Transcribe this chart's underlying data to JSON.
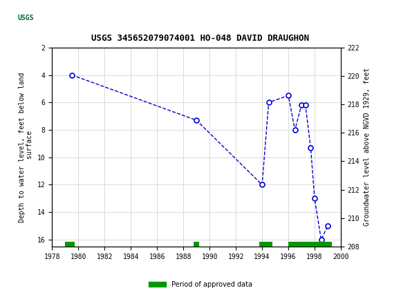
{
  "title": "USGS 345652079074001 HO-048 DAVID DRAUGHON",
  "ylabel_left": "Depth to water level, feet below land\n surface",
  "ylabel_right": "Groundwater level above NGVD 1929, feet",
  "header_color": "#006633",
  "xlim": [
    1978,
    2000
  ],
  "ylim_left": [
    2,
    16.5
  ],
  "ylim_right": [
    208,
    222
  ],
  "xticks": [
    1978,
    1980,
    1982,
    1984,
    1986,
    1988,
    1990,
    1992,
    1994,
    1996,
    1998,
    2000
  ],
  "yticks_left": [
    2,
    4,
    6,
    8,
    10,
    12,
    14,
    16
  ],
  "yticks_right": [
    208,
    210,
    212,
    214,
    216,
    218,
    220,
    222
  ],
  "data_x": [
    1979.5,
    1989.0,
    1994.0,
    1994.5,
    1996.0,
    1996.5,
    1997.0,
    1997.3,
    1997.7,
    1998.0,
    1998.5,
    1999.0
  ],
  "data_y_depth": [
    4.0,
    7.3,
    12.0,
    6.0,
    5.5,
    8.0,
    6.2,
    6.2,
    9.3,
    13.0,
    16.0,
    15.0
  ],
  "line_color": "#0000CC",
  "marker_color": "#0000CC",
  "marker_facecolor": "white",
  "green_bars": [
    {
      "x_start": 1979.0,
      "x_end": 1979.7
    },
    {
      "x_start": 1988.8,
      "x_end": 1989.2
    },
    {
      "x_start": 1993.8,
      "x_end": 1994.8
    },
    {
      "x_start": 1996.0,
      "x_end": 1999.3
    }
  ],
  "green_bar_color": "#009900",
  "legend_label": "Period of approved data",
  "background_color": "#ffffff",
  "plot_bg_color": "#ffffff",
  "grid_color": "#cccccc"
}
